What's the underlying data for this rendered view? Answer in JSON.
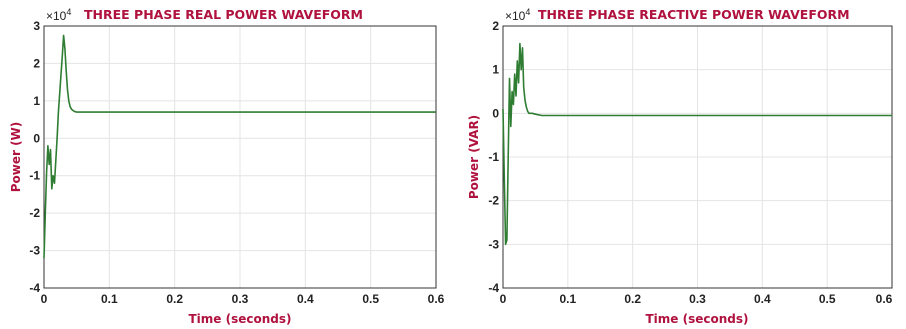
{
  "chart_data": [
    {
      "type": "line",
      "title": "THREE PHASE REAL POWER WAVEFORM",
      "xlabel": "Time (seconds)",
      "ylabel": "Power (W)",
      "multiplier": "×10",
      "multiplier_exp": "4",
      "xlim": [
        0,
        0.6
      ],
      "ylim": [
        -4,
        3
      ],
      "xticks": [
        "0",
        "0.1",
        "0.2",
        "0.3",
        "0.4",
        "0.5",
        "0.6"
      ],
      "yticks": [
        "-4",
        "-3",
        "-2",
        "-1",
        "0",
        "1",
        "2",
        "3"
      ],
      "grid": true,
      "color": "#2e7d32",
      "series": [
        {
          "x": [
            0,
            0.002,
            0.004,
            0.006,
            0.008,
            0.01,
            0.012,
            0.014,
            0.016,
            0.018,
            0.02,
            0.022,
            0.024,
            0.026,
            0.028,
            0.03,
            0.032,
            0.034,
            0.036,
            0.038,
            0.04,
            0.042,
            0.044,
            0.046,
            0.048,
            0.05,
            0.052,
            0.055,
            0.06,
            0.07,
            0.1,
            0.2,
            0.3,
            0.4,
            0.5,
            0.6
          ],
          "y": [
            -3.2,
            -2.0,
            -0.9,
            -0.2,
            -0.7,
            -0.3,
            -1.35,
            -1.0,
            -1.2,
            -0.6,
            0.0,
            0.7,
            1.2,
            1.7,
            2.2,
            2.75,
            2.4,
            1.8,
            1.3,
            1.0,
            0.85,
            0.78,
            0.75,
            0.72,
            0.71,
            0.7,
            0.7,
            0.7,
            0.7,
            0.7,
            0.7,
            0.7,
            0.7,
            0.7,
            0.7,
            0.7
          ]
        }
      ]
    },
    {
      "type": "line",
      "title": "THREE PHASE REACTIVE POWER WAVEFORM",
      "xlabel": "Time (seconds)",
      "ylabel": "Power (VAR)",
      "multiplier": "×10",
      "multiplier_exp": "4",
      "xlim": [
        0,
        0.6
      ],
      "ylim": [
        -4,
        2
      ],
      "xticks": [
        "0",
        "0.1",
        "0.2",
        "0.3",
        "0.4",
        "0.5",
        "0.6"
      ],
      "yticks": [
        "-4",
        "-3",
        "-2",
        "-1",
        "0",
        "1",
        "2"
      ],
      "grid": true,
      "color": "#2e7d32",
      "series": [
        {
          "x": [
            0,
            0.002,
            0.004,
            0.006,
            0.008,
            0.01,
            0.012,
            0.014,
            0.016,
            0.018,
            0.02,
            0.022,
            0.024,
            0.026,
            0.028,
            0.03,
            0.032,
            0.034,
            0.036,
            0.038,
            0.04,
            0.045,
            0.05,
            0.06,
            0.08,
            0.1,
            0.2,
            0.3,
            0.4,
            0.5,
            0.6
          ],
          "y": [
            0.1,
            -1.5,
            -3.0,
            -2.9,
            -1.0,
            0.8,
            -0.3,
            0.5,
            0.2,
            0.9,
            0.4,
            1.2,
            0.7,
            1.6,
            1.0,
            1.5,
            0.6,
            0.3,
            0.15,
            0.05,
            0.0,
            0.0,
            -0.02,
            -0.05,
            -0.05,
            -0.05,
            -0.05,
            -0.05,
            -0.05,
            -0.05,
            -0.05
          ]
        }
      ]
    }
  ]
}
